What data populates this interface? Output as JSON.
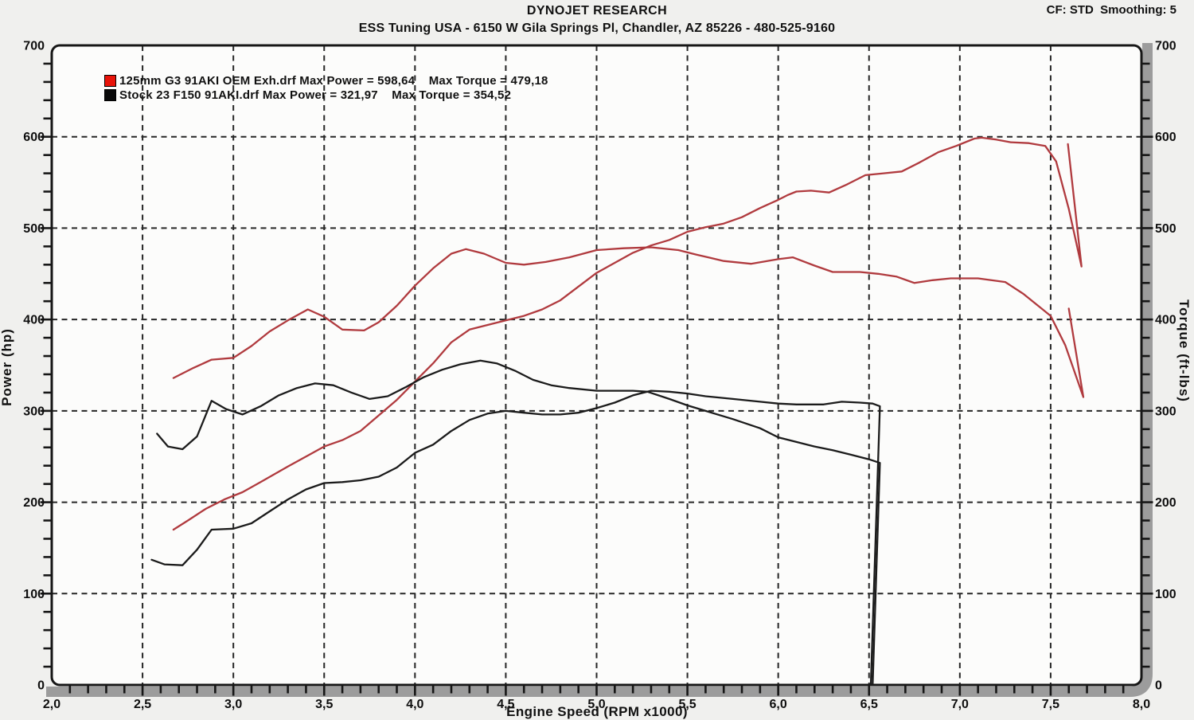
{
  "header": {
    "title": "DYNOJET RESEARCH",
    "subtitle": "ESS Tuning USA - 6150 W Gila Springs Pl, Chandler, AZ 85226 - 480-525-9160",
    "correction_line": "CF: STD  Smoothing: 5",
    "correction_factor": "STD",
    "smoothing": "5"
  },
  "chart_data": {
    "type": "line",
    "title": "DYNOJET RESEARCH",
    "subtitle": "ESS Tuning USA - 6150 W Gila Springs Pl, Chandler, AZ 85226 - 480-525-9160",
    "grid": "dashed",
    "legend_position": "top-left-inside",
    "x_axis": {
      "label": "Engine Speed (RPM x1000)",
      "min": 2.0,
      "max": 8.0,
      "major_tick_step": 0.5,
      "minor_tick_step": 0.1,
      "tick_labels": [
        "2,0",
        "2,5",
        "3,0",
        "3,5",
        "4,0",
        "4,5",
        "5,0",
        "5,5",
        "6,0",
        "6,5",
        "7,0",
        "7,5",
        "8,0"
      ]
    },
    "y_axis_left": {
      "label": "Power (hp)",
      "min": 0,
      "max": 700,
      "major_tick_step": 100,
      "minor_tick_step": 20,
      "tick_labels": [
        "0",
        "100",
        "200",
        "300",
        "400",
        "500",
        "600",
        "700"
      ]
    },
    "y_axis_right": {
      "label": "Torque (ft-lbs)",
      "min": 0,
      "max": 700,
      "major_tick_step": 100,
      "minor_tick_step": 20,
      "tick_labels": [
        "0",
        "100",
        "200",
        "300",
        "400",
        "500",
        "600",
        "700"
      ]
    },
    "series": [
      {
        "name": "125mm G3 91AKI OEM Exh.drf",
        "max_power": "598,64",
        "max_torque": "479,18",
        "legend_text": "125mm G3 91AKI OEM Exh.drf Max Power = 598,64    Max Torque = 479,18",
        "color": "#b03a3e",
        "legend_color": "#e81309",
        "power_points": [
          [
            2.67,
            170
          ],
          [
            2.75,
            180
          ],
          [
            2.85,
            193
          ],
          [
            2.95,
            203
          ],
          [
            3.05,
            211
          ],
          [
            3.15,
            222
          ],
          [
            3.3,
            239
          ],
          [
            3.4,
            250
          ],
          [
            3.5,
            261
          ],
          [
            3.6,
            268
          ],
          [
            3.7,
            278
          ],
          [
            3.8,
            295
          ],
          [
            3.9,
            312
          ],
          [
            4.0,
            332
          ],
          [
            4.1,
            352
          ],
          [
            4.2,
            375
          ],
          [
            4.3,
            389
          ],
          [
            4.4,
            394
          ],
          [
            4.5,
            399
          ],
          [
            4.6,
            404
          ],
          [
            4.7,
            411
          ],
          [
            4.8,
            421
          ],
          [
            4.9,
            436
          ],
          [
            5.0,
            451
          ],
          [
            5.1,
            462
          ],
          [
            5.2,
            473
          ],
          [
            5.3,
            481
          ],
          [
            5.4,
            487
          ],
          [
            5.5,
            496
          ],
          [
            5.6,
            501
          ],
          [
            5.7,
            505
          ],
          [
            5.8,
            512
          ],
          [
            5.9,
            522
          ],
          [
            6.0,
            531
          ],
          [
            6.05,
            536
          ],
          [
            6.1,
            540
          ],
          [
            6.18,
            541
          ],
          [
            6.28,
            539
          ],
          [
            6.38,
            548
          ],
          [
            6.48,
            558
          ],
          [
            6.58,
            560
          ],
          [
            6.68,
            562
          ],
          [
            6.78,
            572
          ],
          [
            6.88,
            583
          ],
          [
            6.98,
            590
          ],
          [
            7.08,
            598
          ],
          [
            7.12,
            599
          ],
          [
            7.2,
            597
          ],
          [
            7.28,
            594
          ],
          [
            7.38,
            593
          ],
          [
            7.47,
            590
          ],
          [
            7.53,
            573
          ],
          [
            7.6,
            521
          ],
          [
            7.67,
            458
          ],
          [
            7.595,
            592
          ]
        ],
        "torque_points": [
          [
            2.67,
            336
          ],
          [
            2.78,
            347
          ],
          [
            2.88,
            356
          ],
          [
            3.0,
            358
          ],
          [
            3.1,
            371
          ],
          [
            3.2,
            387
          ],
          [
            3.3,
            399
          ],
          [
            3.41,
            411
          ],
          [
            3.5,
            403
          ],
          [
            3.6,
            389
          ],
          [
            3.72,
            388
          ],
          [
            3.8,
            397
          ],
          [
            3.9,
            415
          ],
          [
            4.0,
            437
          ],
          [
            4.1,
            456
          ],
          [
            4.2,
            472
          ],
          [
            4.28,
            477
          ],
          [
            4.38,
            472
          ],
          [
            4.5,
            462
          ],
          [
            4.6,
            460
          ],
          [
            4.72,
            463
          ],
          [
            4.85,
            468
          ],
          [
            5.0,
            476
          ],
          [
            5.15,
            478
          ],
          [
            5.3,
            479
          ],
          [
            5.45,
            476
          ],
          [
            5.55,
            471
          ],
          [
            5.7,
            464
          ],
          [
            5.85,
            461
          ],
          [
            6.0,
            466
          ],
          [
            6.08,
            468
          ],
          [
            6.2,
            459
          ],
          [
            6.3,
            452
          ],
          [
            6.45,
            452
          ],
          [
            6.55,
            450
          ],
          [
            6.65,
            447
          ],
          [
            6.75,
            440
          ],
          [
            6.85,
            443
          ],
          [
            6.95,
            445
          ],
          [
            7.1,
            445
          ],
          [
            7.25,
            441
          ],
          [
            7.35,
            428
          ],
          [
            7.45,
            412
          ],
          [
            7.5,
            404
          ],
          [
            7.58,
            372
          ],
          [
            7.68,
            315
          ],
          [
            7.6,
            412
          ]
        ]
      },
      {
        "name": "Stock 23 F150 91AKI.drf",
        "max_power": "321,97",
        "max_torque": "354,52",
        "legend_text": "Stock 23 F150 91AKI.drf Max Power = 321,97    Max Torque = 354,52",
        "color": "#1b1b1b",
        "legend_color": "#0a0a0a",
        "power_points": [
          [
            2.55,
            137
          ],
          [
            2.62,
            132
          ],
          [
            2.72,
            131
          ],
          [
            2.8,
            148
          ],
          [
            2.88,
            170
          ],
          [
            3.0,
            171
          ],
          [
            3.1,
            177
          ],
          [
            3.2,
            190
          ],
          [
            3.3,
            203
          ],
          [
            3.4,
            214
          ],
          [
            3.5,
            221
          ],
          [
            3.6,
            222
          ],
          [
            3.7,
            224
          ],
          [
            3.8,
            228
          ],
          [
            3.9,
            238
          ],
          [
            4.0,
            254
          ],
          [
            4.1,
            263
          ],
          [
            4.2,
            278
          ],
          [
            4.3,
            290
          ],
          [
            4.4,
            297
          ],
          [
            4.5,
            300
          ],
          [
            4.6,
            298
          ],
          [
            4.7,
            296
          ],
          [
            4.8,
            296
          ],
          [
            4.9,
            298
          ],
          [
            5.0,
            303
          ],
          [
            5.1,
            309
          ],
          [
            5.2,
            317
          ],
          [
            5.3,
            322
          ],
          [
            5.4,
            321
          ],
          [
            5.5,
            319
          ],
          [
            5.6,
            316
          ],
          [
            5.75,
            313
          ],
          [
            5.9,
            310
          ],
          [
            6.0,
            308
          ],
          [
            6.1,
            307
          ],
          [
            6.25,
            307
          ],
          [
            6.35,
            310
          ],
          [
            6.45,
            309
          ],
          [
            6.52,
            308
          ],
          [
            6.56,
            305
          ],
          [
            6.51,
            0
          ]
        ],
        "torque_points": [
          [
            2.58,
            275
          ],
          [
            2.64,
            261
          ],
          [
            2.72,
            258
          ],
          [
            2.8,
            272
          ],
          [
            2.88,
            311
          ],
          [
            2.96,
            302
          ],
          [
            3.05,
            296
          ],
          [
            3.15,
            305
          ],
          [
            3.25,
            317
          ],
          [
            3.35,
            325
          ],
          [
            3.45,
            330
          ],
          [
            3.55,
            328
          ],
          [
            3.65,
            320
          ],
          [
            3.75,
            313
          ],
          [
            3.85,
            316
          ],
          [
            3.95,
            326
          ],
          [
            4.05,
            337
          ],
          [
            4.15,
            345
          ],
          [
            4.25,
            351
          ],
          [
            4.36,
            355
          ],
          [
            4.45,
            352
          ],
          [
            4.55,
            344
          ],
          [
            4.65,
            334
          ],
          [
            4.75,
            328
          ],
          [
            4.85,
            325
          ],
          [
            5.0,
            322
          ],
          [
            5.1,
            322
          ],
          [
            5.2,
            322
          ],
          [
            5.28,
            321
          ],
          [
            5.4,
            313
          ],
          [
            5.5,
            306
          ],
          [
            5.6,
            300
          ],
          [
            5.75,
            291
          ],
          [
            5.9,
            281
          ],
          [
            6.0,
            271
          ],
          [
            6.1,
            266
          ],
          [
            6.2,
            261
          ],
          [
            6.3,
            257
          ],
          [
            6.4,
            252
          ],
          [
            6.5,
            247
          ],
          [
            6.56,
            243
          ],
          [
            6.52,
            0
          ]
        ]
      }
    ]
  }
}
